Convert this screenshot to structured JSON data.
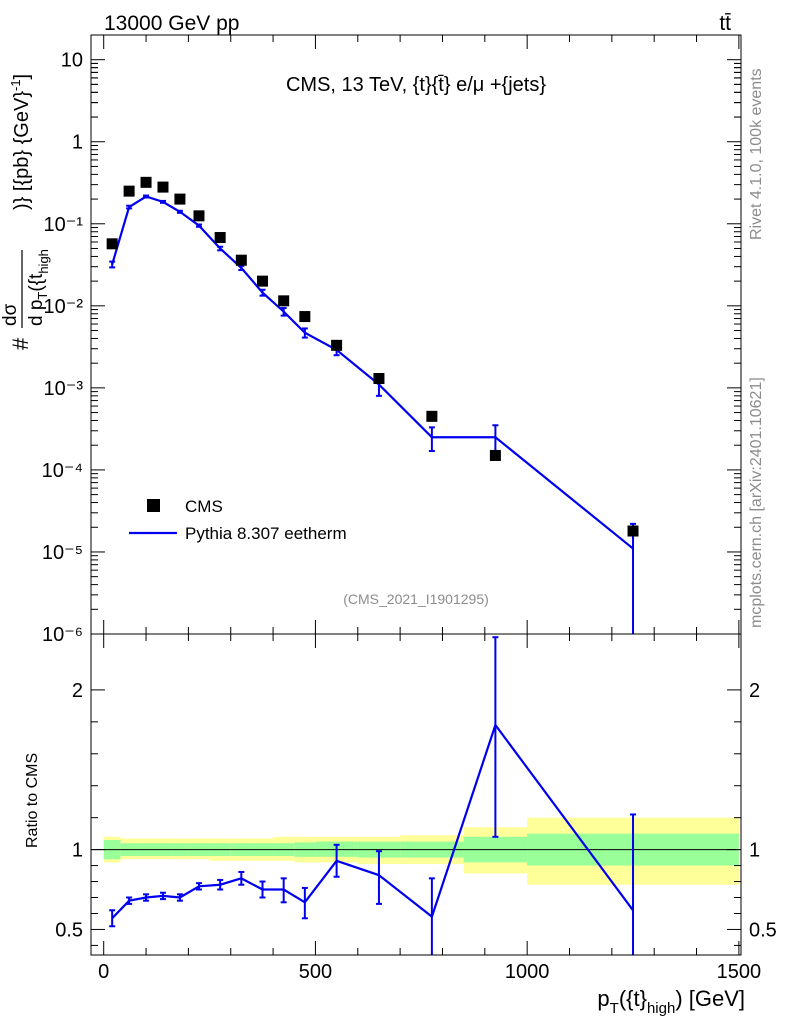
{
  "header": {
    "energy_label": "13000 GeV pp",
    "process_label": "tt̄"
  },
  "side_text": {
    "rivet": "Rivet 4.1.0,  100k events",
    "mcplots": "mcplots.cern.ch [arXiv:2401.10621]"
  },
  "colors": {
    "mc": "#0000ee",
    "data": "#000000",
    "band_inner": "#99ff99",
    "band_outer": "#ffff99",
    "caption": "#8c8c8c"
  },
  "chart_data": [
    {
      "type": "scatter",
      "title": "CMS, 13 TeV, {t}{t̄} e/μ +{jets}",
      "watermark": "(CMS_2021_I1901295)",
      "ylabel": "# dσ/d pT({t}high) [{pb} [GeV]⁻¹]",
      "yscale": "log",
      "ylim": [
        1e-06,
        20
      ],
      "xlim": [
        -30,
        1505
      ],
      "ytick_labels": [
        "10",
        "1",
        "10⁻¹",
        "10⁻²",
        "10⁻³",
        "10⁻⁴",
        "10⁻⁵",
        "10⁻⁶"
      ],
      "legend": {
        "placement": "bottom-left",
        "entries": [
          "CMS",
          "Pythia 8.307 eetherm"
        ]
      },
      "series": [
        {
          "name": "CMS",
          "x": [
            20,
            60,
            100,
            140,
            180,
            225,
            275,
            325,
            375,
            425,
            475,
            550,
            650,
            775,
            925,
            1250
          ],
          "values": [
            0.057,
            0.25,
            0.32,
            0.28,
            0.2,
            0.125,
            0.068,
            0.036,
            0.02,
            0.0115,
            0.0074,
            0.0033,
            0.0013,
            0.00045,
            0.00015,
            1.8e-05
          ]
        },
        {
          "name": "Pythia 8.307 eetherm",
          "x": [
            20,
            60,
            100,
            140,
            180,
            225,
            275,
            325,
            375,
            425,
            475,
            550,
            650,
            775,
            925,
            1250
          ],
          "values": [
            0.032,
            0.16,
            0.215,
            0.185,
            0.14,
            0.095,
            0.05,
            0.029,
            0.0145,
            0.0085,
            0.0047,
            0.0029,
            0.0011,
            0.00025,
            0.00025,
            1.1e-05
          ],
          "err_low": [
            0.0026,
            0.006,
            0.006,
            0.005,
            0.004,
            0.003,
            0.0025,
            0.0017,
            0.0012,
            0.0009,
            0.0006,
            0.0004,
            0.0003,
            8e-05,
            8e-05,
            1.1e-05
          ],
          "err_high": [
            0.0026,
            0.006,
            0.006,
            0.005,
            0.004,
            0.003,
            0.0025,
            0.0017,
            0.0012,
            0.0009,
            0.0006,
            0.0004,
            0.0003,
            8e-05,
            0.0001,
            1.1e-05
          ]
        }
      ]
    },
    {
      "type": "line",
      "ylabel": "Ratio to CMS",
      "xlabel": "pT({t}high) [GeV]",
      "xlim": [
        -30,
        1505
      ],
      "ylim": [
        0.34,
        2.35
      ],
      "x_tick_labels": [
        "0",
        "500",
        "1000",
        "1500"
      ],
      "y_tick_labels": [
        "0.5",
        "1",
        "2"
      ],
      "reference_line": 1.0,
      "bands": {
        "edges": [
          0,
          40,
          80,
          120,
          160,
          200,
          250,
          300,
          350,
          400,
          450,
          500,
          600,
          700,
          850,
          1000,
          1500
        ],
        "inner_low": [
          0.94,
          0.96,
          0.96,
          0.96,
          0.96,
          0.96,
          0.96,
          0.96,
          0.96,
          0.96,
          0.955,
          0.955,
          0.95,
          0.95,
          0.92,
          0.9
        ],
        "inner_high": [
          1.06,
          1.04,
          1.04,
          1.04,
          1.04,
          1.04,
          1.04,
          1.04,
          1.04,
          1.04,
          1.045,
          1.05,
          1.05,
          1.05,
          1.08,
          1.1
        ],
        "outer_low": [
          0.92,
          0.94,
          0.94,
          0.94,
          0.94,
          0.94,
          0.93,
          0.93,
          0.93,
          0.93,
          0.92,
          0.92,
          0.91,
          0.91,
          0.85,
          0.78
        ],
        "outer_high": [
          1.08,
          1.07,
          1.07,
          1.07,
          1.07,
          1.07,
          1.07,
          1.07,
          1.07,
          1.08,
          1.08,
          1.08,
          1.08,
          1.09,
          1.14,
          1.2
        ]
      },
      "series": [
        {
          "name": "Pythia 8.307 eetherm",
          "x": [
            20,
            60,
            100,
            140,
            180,
            225,
            275,
            325,
            375,
            425,
            475,
            550,
            650,
            775,
            925,
            1250
          ],
          "values": [
            0.57,
            0.68,
            0.7,
            0.71,
            0.7,
            0.77,
            0.78,
            0.82,
            0.75,
            0.75,
            0.67,
            0.93,
            0.84,
            0.58,
            1.78,
            0.62
          ],
          "err_low": [
            0.05,
            0.02,
            0.02,
            0.02,
            0.02,
            0.02,
            0.03,
            0.04,
            0.05,
            0.08,
            0.1,
            0.1,
            0.18,
            0.25,
            0.7,
            0.5
          ],
          "err_high": [
            0.05,
            0.02,
            0.02,
            0.02,
            0.02,
            0.02,
            0.03,
            0.04,
            0.05,
            0.07,
            0.09,
            0.1,
            0.15,
            0.24,
            0.55,
            0.6
          ]
        }
      ]
    }
  ]
}
